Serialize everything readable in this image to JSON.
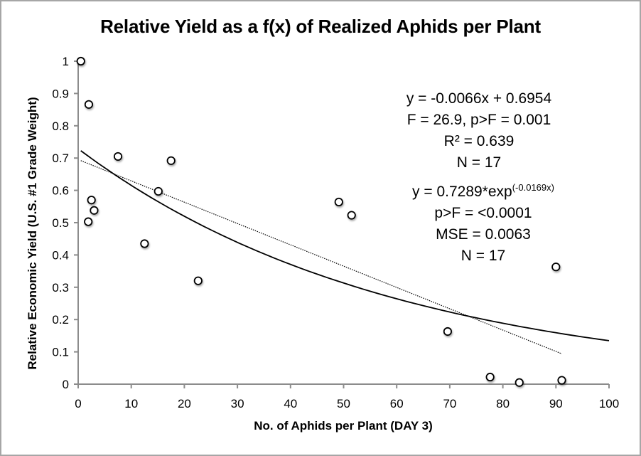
{
  "chart_data": {
    "type": "scatter",
    "title": "Relative Yield as a f(x) of Realized Aphids per Plant",
    "xlabel": "No. of Aphids per Plant (DAY 3)",
    "ylabel": "Relative Economic Yield (U.S. #1 Grade Weight)",
    "xlim": [
      0,
      100
    ],
    "ylim": [
      0,
      1
    ],
    "x_ticks": [
      0,
      10,
      20,
      30,
      40,
      50,
      60,
      70,
      80,
      90,
      100
    ],
    "y_ticks": [
      0,
      0.1,
      0.2,
      0.3,
      0.4,
      0.5,
      0.6,
      0.7,
      0.8,
      0.9,
      1
    ],
    "x_tick_labels": [
      "0",
      "10",
      "20",
      "30",
      "40",
      "50",
      "60",
      "70",
      "80",
      "90",
      "100"
    ],
    "y_tick_labels": [
      "0",
      "0.1",
      "0.2",
      "0.3",
      "0.4",
      "0.5",
      "0.6",
      "0.7",
      "0.8",
      "0.9",
      "1"
    ],
    "grid": false,
    "legend": null,
    "series": [
      {
        "name": "Observed",
        "kind": "scatter",
        "marker": "open-circle",
        "points": [
          {
            "x": 0.5,
            "y": 1.0
          },
          {
            "x": 2.0,
            "y": 0.866
          },
          {
            "x": 2.5,
            "y": 0.57
          },
          {
            "x": 3.0,
            "y": 0.538
          },
          {
            "x": 1.9,
            "y": 0.503
          },
          {
            "x": 7.5,
            "y": 0.705
          },
          {
            "x": 12.5,
            "y": 0.435
          },
          {
            "x": 15.1,
            "y": 0.597
          },
          {
            "x": 17.5,
            "y": 0.692
          },
          {
            "x": 22.6,
            "y": 0.32
          },
          {
            "x": 49.1,
            "y": 0.564
          },
          {
            "x": 51.5,
            "y": 0.523
          },
          {
            "x": 69.6,
            "y": 0.163
          },
          {
            "x": 77.6,
            "y": 0.022
          },
          {
            "x": 83.1,
            "y": 0.005
          },
          {
            "x": 90.0,
            "y": 0.363
          },
          {
            "x": 91.1,
            "y": 0.012
          }
        ]
      },
      {
        "name": "Linear fit",
        "kind": "line",
        "style": "dotted",
        "equation": {
          "slope": -0.0066,
          "intercept": 0.6954
        },
        "x_range": [
          0.5,
          91.1
        ]
      },
      {
        "name": "Exponential fit",
        "kind": "line",
        "style": "solid",
        "equation": {
          "a": 0.7289,
          "b": -0.0169
        },
        "x_range": [
          0.5,
          100
        ]
      }
    ],
    "annotations": [
      {
        "lines": [
          "y = -0.0066x + 0.6954",
          "F = 26.9, p>F = 0.001",
          "R² = 0.639",
          "N = 17"
        ]
      },
      {
        "lines_rich": [
          {
            "text": "y = 0.7289*exp",
            "sup": "(-0.0169x)"
          }
        ],
        "lines": [
          "p>F = <0.0001",
          "MSE = 0.0063",
          "N = 17"
        ]
      }
    ]
  },
  "labels": {
    "title": "Relative Yield as a f(x) of Realized Aphids per Plant",
    "xlabel": "No. of Aphids per Plant (DAY 3)",
    "ylabel": "Relative Economic Yield (U.S. #1 Grade Weight)",
    "linear": {
      "eq": "y = -0.0066x + 0.6954",
      "f": "F = 26.9, p>F = 0.001",
      "r2": "R² = 0.639",
      "n": "N = 17"
    },
    "exp": {
      "eq_base": "y = 0.7289*exp",
      "eq_sup": "(-0.0169x)",
      "p": "p>F = <0.0001",
      "mse": "MSE = 0.0063",
      "n": "N = 17"
    }
  },
  "colors": {
    "axis": "#8c8c8c",
    "frame": "#a6a6a6",
    "marker_stroke": "#000000",
    "marker_fill": "#ffffff",
    "line": "#000000"
  }
}
